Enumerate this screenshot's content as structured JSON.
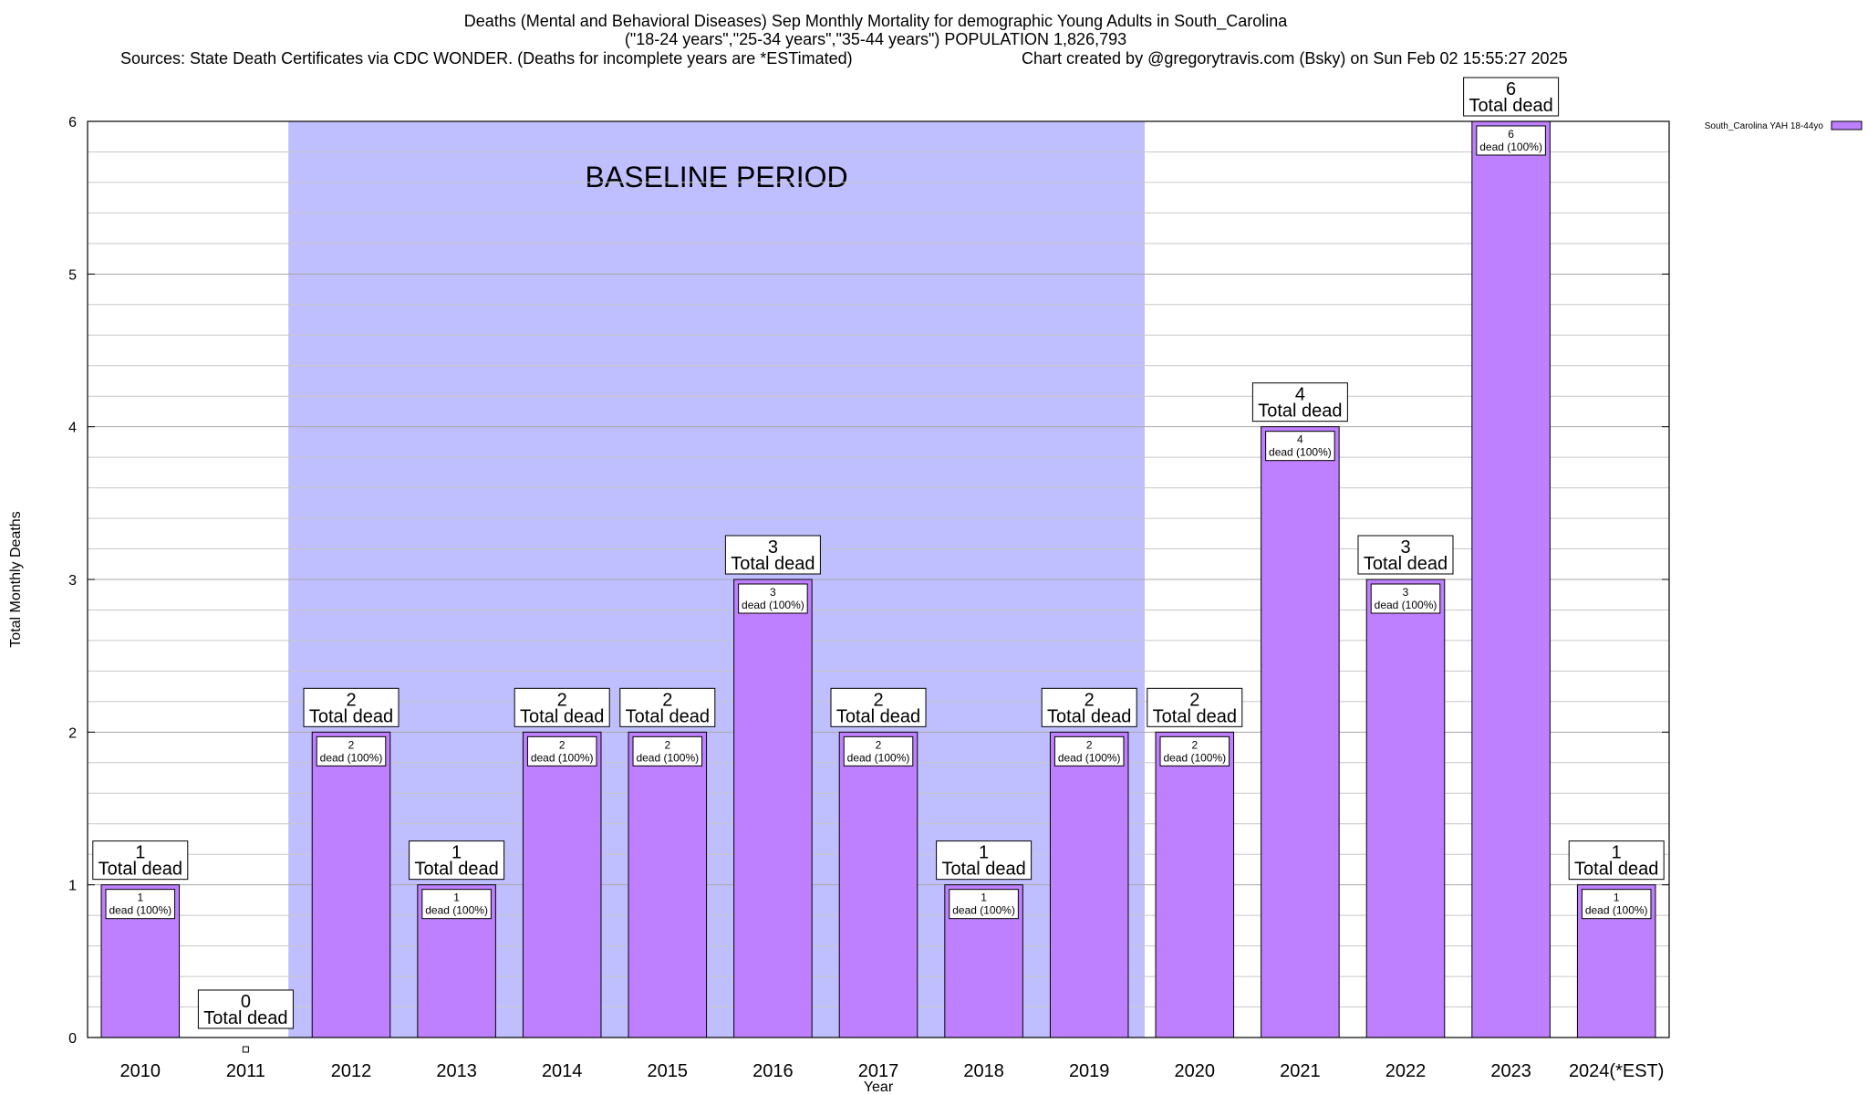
{
  "chart_data": {
    "type": "bar",
    "title": "Deaths (Mental and Behavioral Diseases) Sep Monthly Mortality for demographic Young Adults in South_Carolina",
    "subtitle": "(\"18-24 years\",\"25-34 years\",\"35-44 years\") POPULATION 1,826,793",
    "source_note": "Sources: State Death Certificates via CDC WONDER. (Deaths for incomplete years are *ESTimated)",
    "credit": "Chart created by @gregorytravis.com (Bsky) on Sun Feb 02 15:55:27 2025",
    "xlabel": "Year",
    "ylabel": "Total Monthly Deaths",
    "ylim": [
      0,
      6
    ],
    "y_ticks": [
      "0",
      "1",
      "2",
      "3",
      "4",
      "5",
      "6"
    ],
    "categories": [
      "2010",
      "2011",
      "2012",
      "2013",
      "2014",
      "2015",
      "2016",
      "2017",
      "2018",
      "2019",
      "2020",
      "2021",
      "2022",
      "2023",
      "2024(*EST)"
    ],
    "series": [
      {
        "name": "South_Carolina YAH 18-44yo",
        "color": "#bf80ff",
        "values": [
          1,
          0,
          2,
          1,
          2,
          2,
          3,
          2,
          1,
          2,
          2,
          4,
          3,
          6,
          1
        ]
      }
    ],
    "total_label_word": "Total dead",
    "inner_label_word": "dead (100%)",
    "baseline": {
      "label": "BASELINE PERIOD",
      "from": "2012",
      "to": "2019",
      "color": "#bfbfff"
    },
    "grid": true,
    "legend_position": "top-right"
  }
}
